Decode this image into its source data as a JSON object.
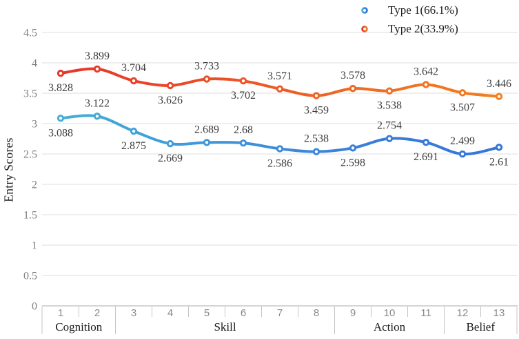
{
  "chart_data": {
    "type": "line",
    "title": "",
    "xlabel": "",
    "ylabel": "Entry Scores",
    "ylim": [
      0,
      4.5
    ],
    "ytick_step": 0.5,
    "yticks": [
      "0",
      "0.5",
      "1",
      "1.5",
      "2",
      "2.5",
      "3",
      "3.5",
      "4",
      "4.5"
    ],
    "grid": "horizontal",
    "legend_position": "top-right",
    "x": [
      "1",
      "2",
      "3",
      "4",
      "5",
      "6",
      "7",
      "8",
      "9",
      "10",
      "11",
      "12",
      "13"
    ],
    "x_groups": [
      {
        "label": "Cognition",
        "from": 1,
        "to": 2
      },
      {
        "label": "Skill",
        "from": 3,
        "to": 8
      },
      {
        "label": "Action",
        "from": 9,
        "to": 11
      },
      {
        "label": "Belief",
        "from": 12,
        "to": 13
      }
    ],
    "series": [
      {
        "name": "Type 2(33.9%)",
        "values": [
          3.828,
          3.899,
          3.704,
          3.626,
          3.733,
          3.702,
          3.571,
          3.459,
          3.578,
          3.538,
          3.642,
          3.507,
          3.446
        ],
        "labels": [
          "3.828",
          "3.899",
          "3.704",
          "3.626",
          "3.733",
          "3.702",
          "3.571",
          "3.459",
          "3.578",
          "3.538",
          "3.642",
          "3.507",
          "3.446"
        ],
        "label_side": [
          "below",
          "above",
          "above",
          "below",
          "above",
          "below",
          "above",
          "below",
          "above",
          "below",
          "above",
          "below",
          "above"
        ],
        "gradient": [
          "#E5332B",
          "#EB4C27",
          "#EF6A23",
          "#F2821E"
        ]
      },
      {
        "name": "Type 1(66.1%)",
        "values": [
          3.088,
          3.122,
          2.875,
          2.669,
          2.689,
          2.68,
          2.586,
          2.538,
          2.598,
          2.754,
          2.691,
          2.499,
          2.61
        ],
        "labels": [
          "3.088",
          "3.122",
          "2.875",
          "2.669",
          "2.689",
          "2.68",
          "2.586",
          "2.538",
          "2.598",
          "2.754",
          "2.691",
          "2.499",
          "2.61"
        ],
        "label_side": [
          "below",
          "above",
          "below",
          "below",
          "above",
          "above",
          "below",
          "above",
          "below",
          "above",
          "below",
          "above",
          "below"
        ],
        "gradient": [
          "#46B2D1",
          "#3E98DB",
          "#3A7FD8",
          "#3474D8"
        ]
      }
    ],
    "colors": {
      "gridline": "#dedede",
      "axis": "#bcbcbc",
      "tick": "#c4c4c4",
      "marker_fill": "#ffffff"
    }
  },
  "legend_order": {
    "first": "Type 1(66.1%)",
    "second": "Type 2(33.9%)"
  }
}
